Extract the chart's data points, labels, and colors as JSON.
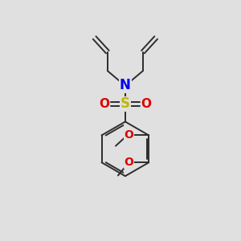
{
  "background_color": "#e0e0e0",
  "bond_color": "#2d2d2d",
  "N_color": "#0000ee",
  "S_color": "#bbbb00",
  "O_color": "#dd0000",
  "figsize": [
    3.0,
    3.0
  ],
  "dpi": 100,
  "xlim": [
    0,
    10
  ],
  "ylim": [
    0,
    10
  ]
}
